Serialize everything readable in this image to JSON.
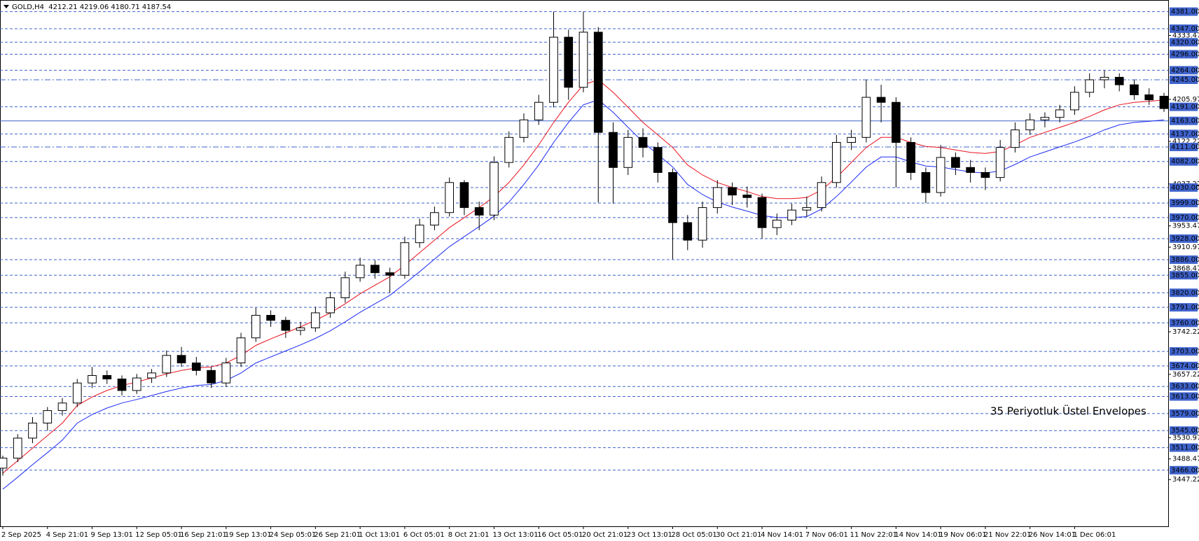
{
  "chart_data": {
    "type": "candlestick",
    "title": "GOLD,H4  4212.21 4219.06 4180.71 4187.54",
    "annotation": "35 Periyotluk Üstel Envelopes",
    "categories": [
      "2 Sep 2025",
      null,
      null,
      "4 Sep 21:01",
      null,
      null,
      "9 Sep 13:01",
      null,
      null,
      "12 Sep 05:01",
      null,
      null,
      "16 Sep 21:01",
      null,
      null,
      "19 Sep 13:01",
      null,
      null,
      "24 Sep 05:01",
      null,
      null,
      "26 Sep 21:01",
      null,
      null,
      "1 Oct 13:01",
      null,
      null,
      "6 Oct 05:01",
      null,
      null,
      "8 Oct 21:01",
      null,
      null,
      "13 Oct 13:01",
      null,
      null,
      "16 Oct 05:01",
      null,
      null,
      "20 Oct 21:01",
      null,
      null,
      "23 Oct 13:01",
      null,
      null,
      "28 Oct 05:01",
      null,
      null,
      "30 Oct 21:01",
      null,
      null,
      "4 Nov 14:01",
      null,
      null,
      "7 Nov 06:01",
      null,
      null,
      "11 Nov 22:01",
      null,
      null,
      "14 Nov 14:01",
      null,
      null,
      "19 Nov 06:01",
      null,
      null,
      "21 Nov 22:01",
      null,
      null,
      "26 Nov 14:01",
      null,
      null,
      "1 Dec 06:01",
      null,
      null,
      null,
      null,
      null,
      null
    ],
    "open": [
      3470,
      3490,
      3530,
      3560,
      3585,
      3600,
      3640,
      3655,
      3648,
      3625,
      3650,
      3660,
      3695,
      3680,
      3665,
      3640,
      3680,
      3730,
      3775,
      3765,
      3745,
      3750,
      3780,
      3810,
      3850,
      3875,
      3860,
      3855,
      3920,
      3955,
      3980,
      4040,
      3990,
      3975,
      4080,
      4130,
      4165,
      4200,
      4330,
      4230,
      4340,
      4140,
      4070,
      4130,
      4110,
      4060,
      3960,
      3925,
      3990,
      4030,
      4015,
      4010,
      3950,
      3965,
      3985,
      3990,
      4040,
      4120,
      4130,
      4210,
      4200,
      4120,
      4060,
      4020,
      4090,
      4070,
      4060,
      4050,
      4110,
      4145,
      4165,
      4170,
      4185,
      4220,
      4245,
      4250,
      4235,
      4215,
      4212.21
    ],
    "high": [
      3495,
      3538,
      3572,
      3592,
      3610,
      3648,
      3672,
      3665,
      3655,
      3658,
      3668,
      3705,
      3712,
      3692,
      3672,
      3690,
      3740,
      3790,
      3785,
      3772,
      3762,
      3792,
      3822,
      3862,
      3890,
      3885,
      3870,
      3932,
      3968,
      3992,
      4050,
      4045,
      4002,
      4092,
      4142,
      4178,
      4215,
      4381,
      4345,
      4381,
      4350,
      4160,
      4145,
      4148,
      4120,
      4068,
      3975,
      4002,
      4045,
      4040,
      4032,
      4018,
      3978,
      3998,
      4012,
      4052,
      4135,
      4145,
      4245,
      4235,
      4210,
      4130,
      4070,
      4115,
      4100,
      4085,
      4070,
      4125,
      4160,
      4178,
      4180,
      4195,
      4232,
      4258,
      4264,
      4258,
      4245,
      4228,
      4219.06
    ],
    "low": [
      3455,
      3482,
      3520,
      3545,
      3575,
      3592,
      3630,
      3638,
      3615,
      3618,
      3640,
      3652,
      3672,
      3655,
      3630,
      3632,
      3672,
      3722,
      3752,
      3730,
      3735,
      3742,
      3770,
      3800,
      3842,
      3848,
      3820,
      3848,
      3910,
      3945,
      3972,
      3975,
      3945,
      3965,
      4070,
      4120,
      4155,
      4190,
      4205,
      4220,
      4000,
      3998,
      4055,
      4090,
      4040,
      3887,
      3905,
      3910,
      3978,
      3995,
      3990,
      3928,
      3935,
      3955,
      3972,
      3982,
      4030,
      4105,
      4120,
      4160,
      4030,
      4045,
      3999,
      4012,
      4055,
      4040,
      4025,
      4042,
      4100,
      4135,
      4150,
      4160,
      4175,
      4210,
      4228,
      4222,
      4205,
      4195,
      4180.71
    ],
    "close": [
      3490,
      3530,
      3560,
      3585,
      3600,
      3640,
      3655,
      3648,
      3625,
      3650,
      3660,
      3695,
      3680,
      3665,
      3640,
      3680,
      3730,
      3775,
      3765,
      3745,
      3750,
      3780,
      3810,
      3850,
      3875,
      3860,
      3855,
      3920,
      3955,
      3980,
      4040,
      3990,
      3975,
      4080,
      4130,
      4165,
      4200,
      4330,
      4230,
      4340,
      4140,
      4070,
      4130,
      4110,
      4060,
      3960,
      3925,
      3990,
      4030,
      4015,
      4010,
      3950,
      3965,
      3985,
      3990,
      4040,
      4120,
      4130,
      4210,
      4200,
      4120,
      4060,
      4020,
      4090,
      4070,
      4060,
      4050,
      4110,
      4145,
      4165,
      4170,
      4185,
      4220,
      4245,
      4250,
      4235,
      4215,
      4205,
      4187.54
    ],
    "up_color": "#ffffff",
    "down_color": "#000000",
    "wick_color": "#000000",
    "overlays": [
      {
        "color": "#e8121d",
        "values": [
          3460,
          3485,
          3510,
          3535,
          3560,
          3595,
          3612,
          3625,
          3635,
          3642,
          3650,
          3658,
          3665,
          3670,
          3672,
          3680,
          3695,
          3715,
          3728,
          3740,
          3752,
          3765,
          3780,
          3798,
          3818,
          3835,
          3852,
          3875,
          3900,
          3925,
          3950,
          3970,
          3990,
          4012,
          4040,
          4075,
          4115,
          4160,
          4200,
          4235,
          4245,
          4220,
          4190,
          4160,
          4135,
          4110,
          4075,
          4055,
          4040,
          4030,
          4022,
          4012,
          4008,
          4008,
          4010,
          4025,
          4050,
          4080,
          4110,
          4130,
          4130,
          4120,
          4112,
          4110,
          4105,
          4100,
          4098,
          4102,
          4115,
          4130,
          4140,
          4150,
          4160,
          4172,
          4185,
          4195,
          4200,
          4202,
          4205
        ]
      },
      {
        "color": "#1d2cf0",
        "values": [
          3428,
          3452,
          3477,
          3501,
          3526,
          3560,
          3577,
          3590,
          3600,
          3607,
          3615,
          3623,
          3630,
          3635,
          3637,
          3645,
          3660,
          3680,
          3692,
          3704,
          3716,
          3729,
          3744,
          3762,
          3781,
          3798,
          3815,
          3838,
          3862,
          3887,
          3912,
          3932,
          3952,
          3973,
          4001,
          4036,
          4075,
          4120,
          4160,
          4195,
          4205,
          4180,
          4150,
          4121,
          4096,
          4071,
          4036,
          4016,
          4001,
          3991,
          3983,
          3974,
          3970,
          3970,
          3972,
          3987,
          4012,
          4041,
          4071,
          4091,
          4091,
          4081,
          4073,
          4071,
          4066,
          4061,
          4059,
          4063,
          4076,
          4091,
          4101,
          4111,
          4121,
          4132,
          4145,
          4155,
          4160,
          4162,
          4165
        ]
      }
    ],
    "ylim": [
      3354,
      4400
    ],
    "yticks": [
      4333.47,
      4205.97,
      4122.22,
      4037.22,
      3953.47,
      3910.97,
      3868.47,
      3742.22,
      3657.22,
      3530.97,
      3488.47,
      3447.22
    ],
    "level_color": "#3f63cc",
    "levels": [
      {
        "value": 4381,
        "label": "4381.00",
        "style": "dashed"
      },
      {
        "value": 4347,
        "label": "4347.00",
        "style": "dashed"
      },
      {
        "value": 4320,
        "label": "4320.00",
        "style": "dashed"
      },
      {
        "value": 4296,
        "label": "4296.00",
        "style": "dashed"
      },
      {
        "value": 4264,
        "label": "4264.00",
        "style": "dashed"
      },
      {
        "value": 4245,
        "label": "4245.00",
        "style": "dashdot"
      },
      {
        "value": 4191,
        "label": "4191.00",
        "style": "dashed"
      },
      {
        "value": 4163,
        "label": "4163.00",
        "style": "solid"
      },
      {
        "value": 4137,
        "label": "4137.00",
        "style": "dashed"
      },
      {
        "value": 4111,
        "label": "4111.00",
        "style": "dashdot"
      },
      {
        "value": 4082,
        "label": "4082.00",
        "style": "dashed"
      },
      {
        "value": 4030,
        "label": "4030.00",
        "style": "dashed"
      },
      {
        "value": 3999,
        "label": "3999.00",
        "style": "dashed"
      },
      {
        "value": 3970,
        "label": "3970.00",
        "style": "dashed"
      },
      {
        "value": 3928,
        "label": "3928.00",
        "style": "dashed"
      },
      {
        "value": 3886,
        "label": "3886.00",
        "style": "dashed"
      },
      {
        "value": 3855,
        "label": "3855.00",
        "style": "dashed"
      },
      {
        "value": 3820,
        "label": "3820.00",
        "style": "dashed"
      },
      {
        "value": 3791,
        "label": "3791.00",
        "style": "dashed"
      },
      {
        "value": 3760,
        "label": "3760.00",
        "style": "dashed"
      },
      {
        "value": 3703,
        "label": "3703.00",
        "style": "dashed"
      },
      {
        "value": 3674,
        "label": "3674.00",
        "style": "dashed"
      },
      {
        "value": 3633,
        "label": "3633.00",
        "style": "dashed"
      },
      {
        "value": 3613,
        "label": "3613.00",
        "style": "dashed"
      },
      {
        "value": 3579,
        "label": "3579.00",
        "style": "dashed"
      },
      {
        "value": 3545,
        "label": "3545.00",
        "style": "dashed"
      },
      {
        "value": 3511,
        "label": "3511.00",
        "style": "dashed"
      },
      {
        "value": 3466,
        "label": "3466.00",
        "style": "dashed"
      }
    ]
  }
}
